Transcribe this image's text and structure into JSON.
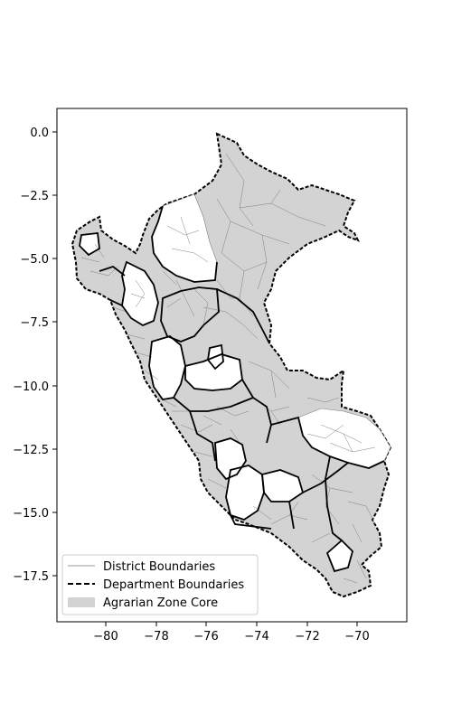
{
  "figure": {
    "background": "#ffffff",
    "axis_color": "#000000"
  },
  "map": {
    "type": "choropleth map",
    "region": "Peru",
    "x_ticks": [
      "−80",
      "−78",
      "−76",
      "−74",
      "−72",
      "−70"
    ],
    "y_ticks": [
      "0.0",
      "−2.5",
      "−5.0",
      "−7.5",
      "−10.0",
      "−12.5",
      "−15.0",
      "−17.5"
    ],
    "colors": {
      "core_fill": "#d3d3d3",
      "non_core_fill": "#ffffff",
      "district_line": "#7f7f7f",
      "department_line": "#000000"
    }
  },
  "legend": {
    "placement": "lower-left",
    "items": [
      {
        "label": "District Boundaries",
        "style": "thin-gray-line"
      },
      {
        "label": "Department Boundaries",
        "style": "dashed-black-line"
      },
      {
        "label": "Agrarian Zone Core",
        "style": "gray-patch"
      }
    ]
  }
}
